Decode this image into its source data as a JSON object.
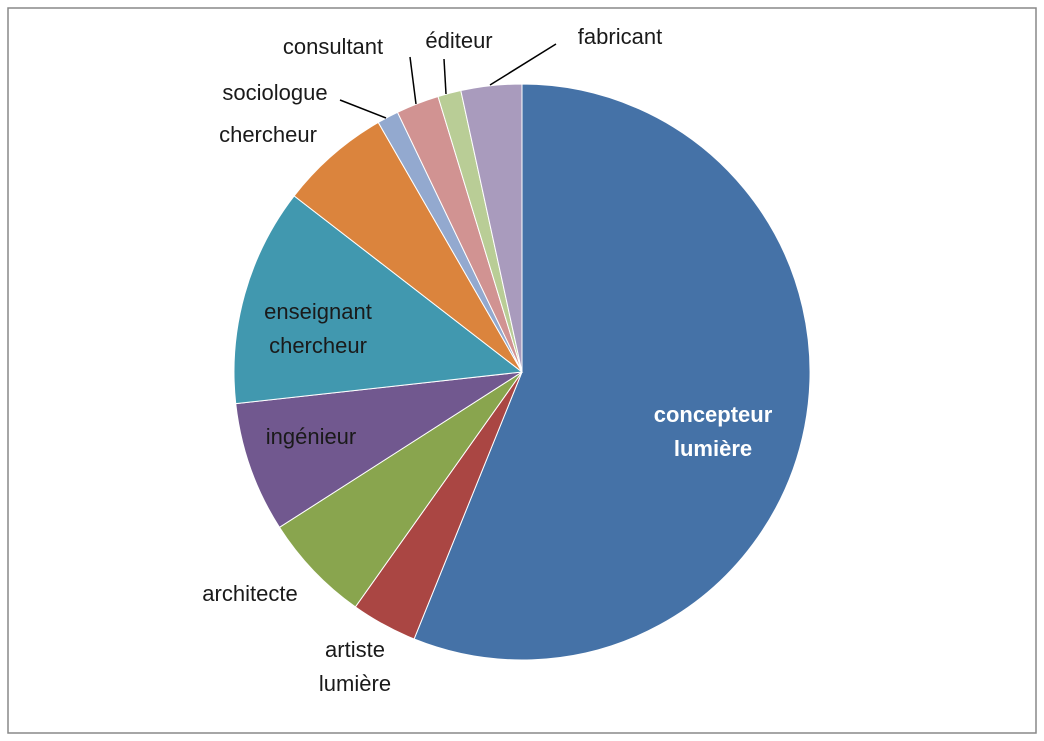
{
  "chart_data": {
    "type": "pie",
    "categories": [
      "concepteur lumière",
      "artiste lumière",
      "architecte",
      "ingénieur",
      "enseignant chercheur",
      "chercheur",
      "sociologue",
      "consultant",
      "éditeur",
      "fabricant"
    ],
    "values": [
      56,
      3.7,
      6.1,
      7.3,
      12.2,
      6.2,
      1.2,
      2.4,
      1.3,
      3.4
    ],
    "colors": [
      "#4572a7",
      "#aa4643",
      "#89a54e",
      "#71588f",
      "#4198af",
      "#db843d",
      "#93a9cf",
      "#d19392",
      "#b9cd96",
      "#a99bbd"
    ]
  }
}
